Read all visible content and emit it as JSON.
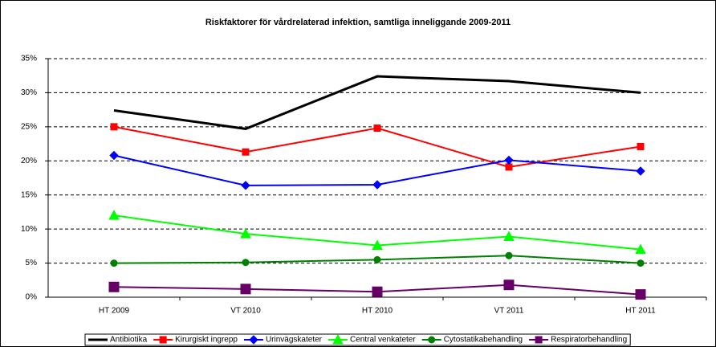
{
  "chart_data": {
    "type": "line",
    "title": "Riskfaktorer för vårdrelaterad infektion, samtliga inneliggande 2009-2011",
    "categories": [
      "HT 2009",
      "VT 2010",
      "HT 2010",
      "VT 2011",
      "HT 2011"
    ],
    "series": [
      {
        "name": "Antibiotika",
        "color": "#000000",
        "marker": "none",
        "values": [
          27.4,
          24.7,
          32.4,
          31.7,
          30.0
        ]
      },
      {
        "name": "Kirurgiskt ingrepp",
        "color": "#ff0000",
        "marker": "square",
        "values": [
          25.0,
          21.3,
          24.8,
          19.1,
          22.1
        ]
      },
      {
        "name": "Urinvägskateter",
        "color": "#0000ff",
        "marker": "diamond",
        "values": [
          20.8,
          16.4,
          16.5,
          20.1,
          18.5
        ]
      },
      {
        "name": "Central venkateter",
        "color": "#00ff00",
        "marker": "triangle",
        "values": [
          12.0,
          9.3,
          7.6,
          8.9,
          7.0
        ]
      },
      {
        "name": "Cytostatikabehandling",
        "color": "#008000",
        "marker": "circle",
        "values": [
          5.0,
          5.1,
          5.5,
          6.1,
          5.0
        ]
      },
      {
        "name": "Respiratorbehandling",
        "color": "#660066",
        "marker": "bigsquare",
        "values": [
          1.5,
          1.2,
          0.8,
          1.8,
          0.4
        ]
      }
    ],
    "ylim": [
      0,
      35
    ],
    "yticks": [
      {
        "value": 0,
        "label": "0%"
      },
      {
        "value": 5,
        "label": "5%"
      },
      {
        "value": 10,
        "label": "10%"
      },
      {
        "value": 15,
        "label": "15%"
      },
      {
        "value": 20,
        "label": "20%"
      },
      {
        "value": 25,
        "label": "25%"
      },
      {
        "value": 30,
        "label": "30%"
      },
      {
        "value": 35,
        "label": "35%"
      }
    ],
    "grid": true,
    "legend": "bottom"
  }
}
